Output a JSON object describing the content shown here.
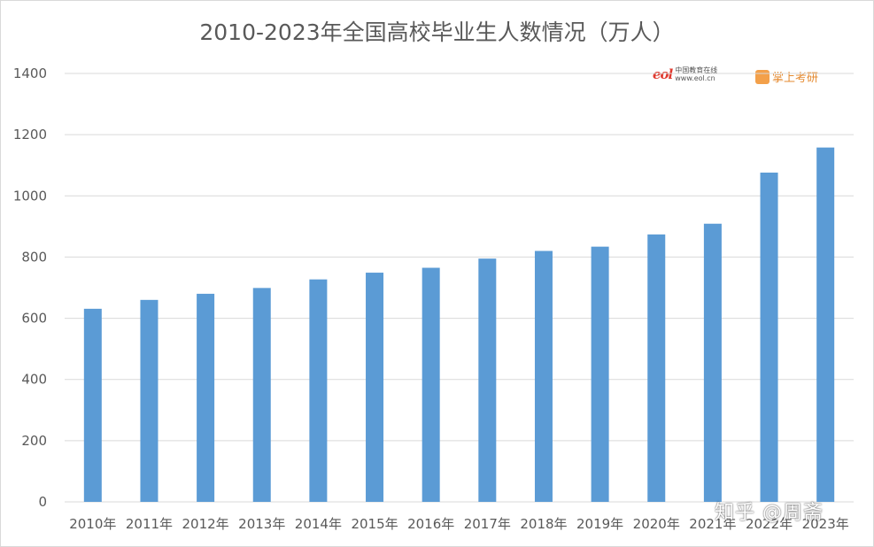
{
  "chart_data": {
    "type": "bar",
    "title": "2010-2023年全国高校毕业生人数情况（万人）",
    "categories": [
      "2010年",
      "2011年",
      "2012年",
      "2013年",
      "2014年",
      "2015年",
      "2016年",
      "2017年",
      "2018年",
      "2019年",
      "2020年",
      "2021年",
      "2022年",
      "2023年"
    ],
    "values": [
      631,
      660,
      680,
      699,
      727,
      749,
      765,
      795,
      820,
      834,
      874,
      909,
      1076,
      1158
    ],
    "ylim": [
      0,
      1400
    ],
    "yticks": [
      0,
      200,
      400,
      600,
      800,
      1000,
      1200,
      1400
    ],
    "grid": true,
    "bar_color": "#5b9bd5",
    "grid_color": "#d9d9d9",
    "text_color": "#595959"
  },
  "logos": {
    "eol_mark": "eol",
    "eol_text": "中国教育在线",
    "eol_sub": "www.eol.cn",
    "xs_text": "掌上考研"
  },
  "watermark": "知乎 @周斋"
}
